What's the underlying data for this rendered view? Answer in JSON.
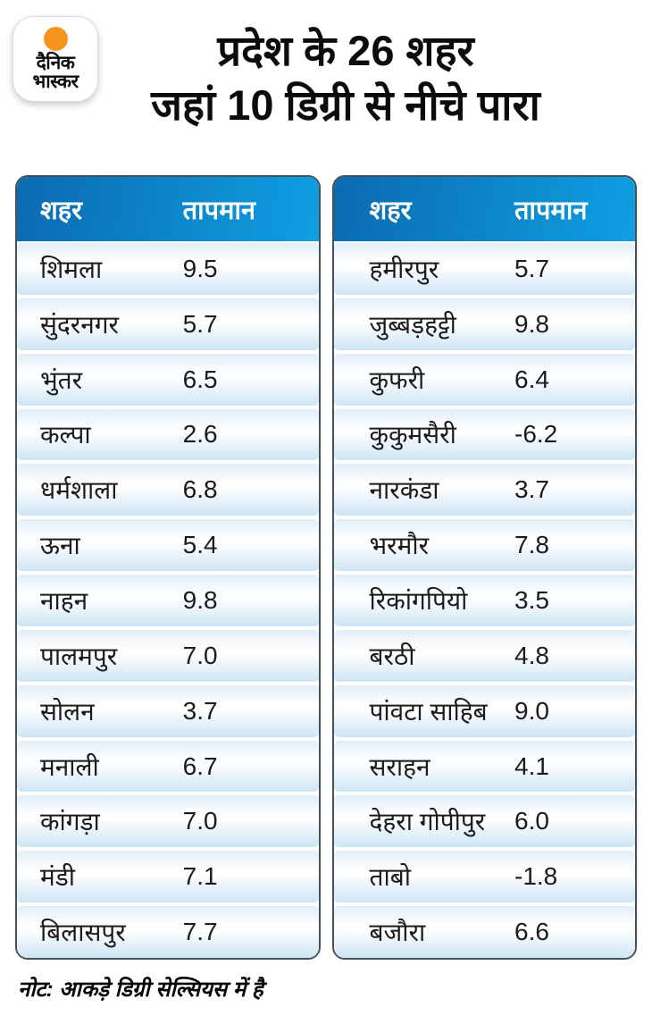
{
  "logo": {
    "line1": "दैनिक",
    "line2": "भास्कर"
  },
  "title": {
    "line1": "प्रदेश के 26 शहर",
    "line2": "जहां 10 डिग्री से नीचे पारा"
  },
  "header_columns": {
    "city": "शहर",
    "temperature": "तापमान"
  },
  "note": "नोट: आकड़े डिग्री सेल्सियस में है",
  "colors": {
    "header_gradient_left": "#0b6ab0",
    "header_gradient_right": "#0f9fe2",
    "row_blue": "#cde5f4",
    "accent_orange": "#f7941d"
  },
  "chart_data": {
    "type": "table",
    "title": "प्रदेश के 26 शहर जहां 10 डिग्री से नीचे पारा",
    "columns": [
      "शहर",
      "तापमान"
    ],
    "unit_note": "नोट: आकड़े डिग्री सेल्सियस में है",
    "left_table": [
      {
        "city": "शिमला",
        "temp": "9.5"
      },
      {
        "city": "सुंदरनगर",
        "temp": "5.7"
      },
      {
        "city": "भुंतर",
        "temp": "6.5"
      },
      {
        "city": "कल्पा",
        "temp": "2.6"
      },
      {
        "city": "धर्मशाला",
        "temp": "6.8"
      },
      {
        "city": "ऊना",
        "temp": "5.4"
      },
      {
        "city": "नाहन",
        "temp": "9.8"
      },
      {
        "city": "पालमपुर",
        "temp": "7.0"
      },
      {
        "city": "सोलन",
        "temp": "3.7"
      },
      {
        "city": "मनाली",
        "temp": "6.7"
      },
      {
        "city": "कांगड़ा",
        "temp": "7.0"
      },
      {
        "city": "मंडी",
        "temp": "7.1"
      },
      {
        "city": "बिलासपुर",
        "temp": "7.7"
      }
    ],
    "right_table": [
      {
        "city": "हमीरपुर",
        "temp": "5.7"
      },
      {
        "city": "जुब्बड़हट्टी",
        "temp": "9.8"
      },
      {
        "city": "कुफरी",
        "temp": "6.4"
      },
      {
        "city": "कुकुमसैरी",
        "temp": "-6.2"
      },
      {
        "city": "नारकंडा",
        "temp": "3.7"
      },
      {
        "city": "भरमौर",
        "temp": "7.8"
      },
      {
        "city": "रिकांगपियो",
        "temp": "3.5"
      },
      {
        "city": "बरठी",
        "temp": "4.8"
      },
      {
        "city": "पांवटा साहिब",
        "temp": "9.0"
      },
      {
        "city": "सराहन",
        "temp": "4.1"
      },
      {
        "city": "देहरा गोपीपुर",
        "temp": "6.0"
      },
      {
        "city": "ताबो",
        "temp": "-1.8"
      },
      {
        "city": "बजौरा",
        "temp": "6.6"
      }
    ]
  }
}
